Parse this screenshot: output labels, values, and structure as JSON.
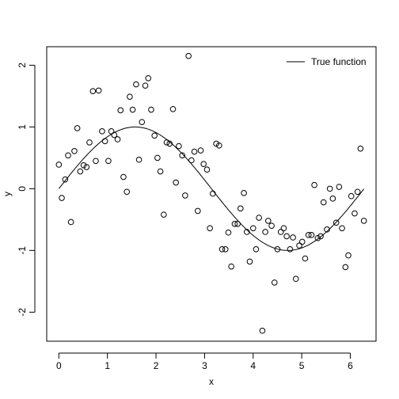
{
  "chart_data": {
    "type": "scatter",
    "title": "",
    "xlabel": "x",
    "ylabel": "y",
    "xlim": [
      -0.25,
      6.53
    ],
    "ylim": [
      -2.47,
      2.3
    ],
    "x_ticks": [
      0,
      1,
      2,
      3,
      4,
      5,
      6
    ],
    "y_ticks": [
      -2,
      -1,
      0,
      1,
      2
    ],
    "grid": false,
    "legend": {
      "position": "top-right",
      "entries": [
        "True function"
      ]
    },
    "line_series": {
      "name": "True function",
      "function": "sin(x)",
      "x_range": [
        0,
        6.28
      ]
    },
    "points": [
      [
        0.0,
        0.39
      ],
      [
        0.06,
        -0.15
      ],
      [
        0.13,
        0.15
      ],
      [
        0.19,
        0.54
      ],
      [
        0.25,
        -0.54
      ],
      [
        0.32,
        0.61
      ],
      [
        0.38,
        0.98
      ],
      [
        0.44,
        0.28
      ],
      [
        0.51,
        0.38
      ],
      [
        0.57,
        0.35
      ],
      [
        0.63,
        0.75
      ],
      [
        0.7,
        1.58
      ],
      [
        0.76,
        0.45
      ],
      [
        0.82,
        1.59
      ],
      [
        0.89,
        0.93
      ],
      [
        0.95,
        0.77
      ],
      [
        1.02,
        0.45
      ],
      [
        1.08,
        0.93
      ],
      [
        1.14,
        0.87
      ],
      [
        1.21,
        0.8
      ],
      [
        1.27,
        1.27
      ],
      [
        1.33,
        0.19
      ],
      [
        1.4,
        -0.05
      ],
      [
        1.46,
        1.49
      ],
      [
        1.52,
        1.28
      ],
      [
        1.59,
        1.69
      ],
      [
        1.65,
        0.47
      ],
      [
        1.71,
        1.08
      ],
      [
        1.78,
        1.67
      ],
      [
        1.84,
        1.79
      ],
      [
        1.9,
        1.28
      ],
      [
        1.97,
        0.86
      ],
      [
        2.03,
        0.5
      ],
      [
        2.09,
        0.28
      ],
      [
        2.16,
        -0.42
      ],
      [
        2.22,
        0.75
      ],
      [
        2.28,
        0.73
      ],
      [
        2.35,
        1.29
      ],
      [
        2.41,
        0.1
      ],
      [
        2.47,
        0.69
      ],
      [
        2.54,
        0.54
      ],
      [
        2.6,
        -0.11
      ],
      [
        2.67,
        2.15
      ],
      [
        2.73,
        0.46
      ],
      [
        2.79,
        0.6
      ],
      [
        2.86,
        -0.36
      ],
      [
        2.92,
        0.62
      ],
      [
        2.98,
        0.4
      ],
      [
        3.05,
        0.31
      ],
      [
        3.11,
        -0.64
      ],
      [
        3.17,
        -0.08
      ],
      [
        3.24,
        0.73
      ],
      [
        3.3,
        0.7
      ],
      [
        3.36,
        -0.98
      ],
      [
        3.43,
        -0.98
      ],
      [
        3.49,
        -0.71
      ],
      [
        3.55,
        -1.26
      ],
      [
        3.62,
        -0.57
      ],
      [
        3.68,
        -0.57
      ],
      [
        3.74,
        -0.32
      ],
      [
        3.81,
        -0.07
      ],
      [
        3.87,
        -0.7
      ],
      [
        3.93,
        -1.18
      ],
      [
        4.0,
        -0.64
      ],
      [
        4.06,
        -0.98
      ],
      [
        4.12,
        -0.47
      ],
      [
        4.19,
        -2.3
      ],
      [
        4.25,
        -0.7
      ],
      [
        4.31,
        -0.52
      ],
      [
        4.38,
        -0.6
      ],
      [
        4.44,
        -1.52
      ],
      [
        4.5,
        -0.98
      ],
      [
        4.57,
        -0.7
      ],
      [
        4.63,
        -0.64
      ],
      [
        4.69,
        -0.77
      ],
      [
        4.76,
        -0.98
      ],
      [
        4.82,
        -0.79
      ],
      [
        4.88,
        -1.46
      ],
      [
        4.95,
        -0.92
      ],
      [
        5.01,
        -0.86
      ],
      [
        5.07,
        -1.13
      ],
      [
        5.14,
        -0.75
      ],
      [
        5.2,
        -0.75
      ],
      [
        5.26,
        0.06
      ],
      [
        5.33,
        -0.8
      ],
      [
        5.39,
        -0.77
      ],
      [
        5.45,
        -0.22
      ],
      [
        5.52,
        -0.66
      ],
      [
        5.58,
        0.0
      ],
      [
        5.64,
        -0.16
      ],
      [
        5.71,
        -0.55
      ],
      [
        5.77,
        0.03
      ],
      [
        5.83,
        -0.64
      ],
      [
        5.9,
        -1.27
      ],
      [
        5.96,
        -1.08
      ],
      [
        6.02,
        -0.12
      ],
      [
        6.09,
        -0.4
      ],
      [
        6.15,
        -0.05
      ],
      [
        6.21,
        0.65
      ],
      [
        6.28,
        -0.52
      ]
    ]
  }
}
